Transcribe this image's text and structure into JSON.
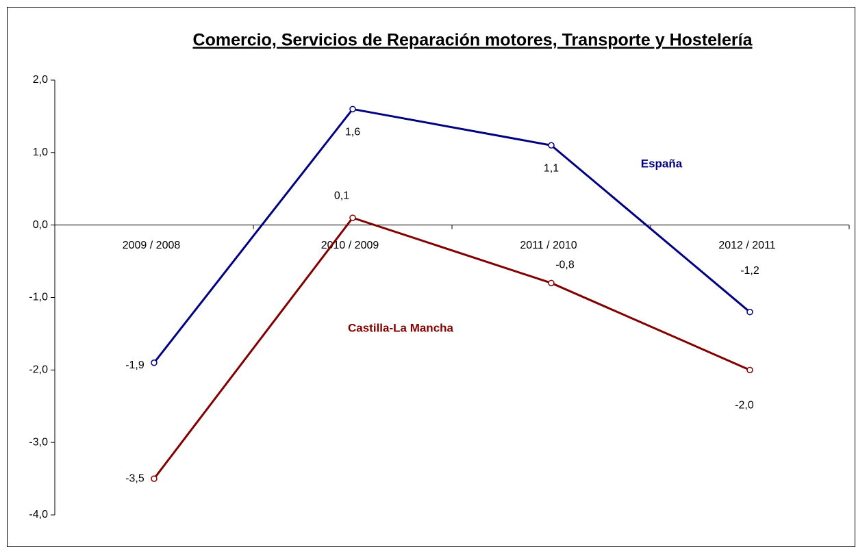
{
  "chart_data": {
    "type": "line",
    "title": "Comercio, Servicios de Reparación motores, Transporte y Hostelería",
    "categories": [
      "2009 / 2008",
      "2010 / 2009",
      "2011 / 2010",
      "2012 / 2011"
    ],
    "series": [
      {
        "name": "España",
        "color": "#000080",
        "values": [
          -1.9,
          1.6,
          1.1,
          -1.2
        ],
        "value_labels": [
          "-1,9",
          "1,6",
          "1,1",
          "-1,2"
        ]
      },
      {
        "name": "Castilla-La Mancha",
        "color": "#800000",
        "values": [
          -3.5,
          0.1,
          -0.8,
          -2.0
        ],
        "value_labels": [
          "-3,5",
          "0,1",
          "-0,8",
          "-2,0"
        ]
      }
    ],
    "ylim": [
      -4,
      2
    ],
    "yticks": [
      {
        "value": -4,
        "label": "-4,0"
      },
      {
        "value": -3,
        "label": "-3,0"
      },
      {
        "value": -2,
        "label": "-2,0"
      },
      {
        "value": -1,
        "label": "-1,0"
      },
      {
        "value": 0,
        "label": "0,0"
      },
      {
        "value": 1,
        "label": "1,0"
      },
      {
        "value": 2,
        "label": "2,0"
      }
    ],
    "grid": false
  }
}
